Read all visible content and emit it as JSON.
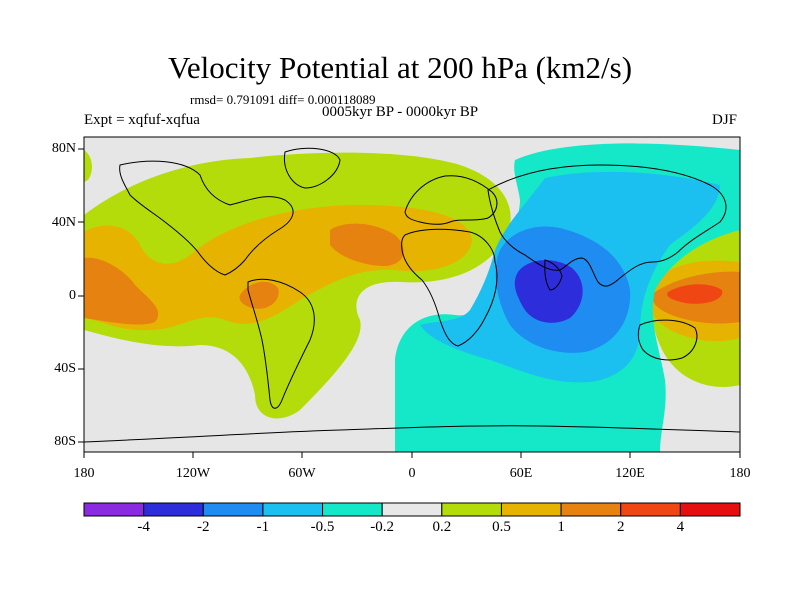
{
  "title": "Velocity Potential at 200 hPa (km2/s)",
  "stats": "rmsd= 0.791091 diff= 0.000118089",
  "period": "0005kyr BP - 0000kyr BP",
  "experiment": "Expt = xqfuf-xqfua",
  "season": "DJF",
  "lat_labels": [
    "80N",
    "40N",
    "0",
    "40S",
    "80S"
  ],
  "lon_labels": [
    "180",
    "120W",
    "60W",
    "0",
    "60E",
    "120E",
    "180"
  ],
  "colorbar": {
    "labels": [
      "-4",
      "-2",
      "-1",
      "-0.5",
      "-0.2",
      "0.2",
      "0.5",
      "1",
      "2",
      "4"
    ],
    "colors": [
      "#8a2be2",
      "#2d2ddc",
      "#1e8cf0",
      "#1cc0f0",
      "#14e8c8",
      "#e8e8e8",
      "#b4dc0a",
      "#e6b400",
      "#e6820f",
      "#f04614",
      "#e60f0f"
    ]
  },
  "region_colors": {
    "background": "#e6e6e6",
    "weak_pos": "#b4dc0a",
    "mod_pos": "#e6b400",
    "strong_pos": "#e6820f",
    "max_pos": "#f04614",
    "weak_neg": "#14e8c8",
    "mod_neg": "#1cc0f0",
    "strong_neg": "#1e8cf0",
    "max_neg": "#2d2ddc"
  }
}
